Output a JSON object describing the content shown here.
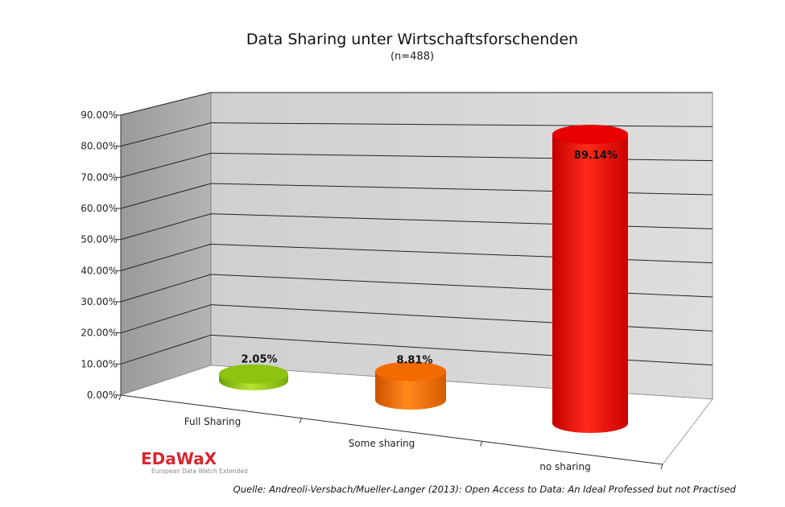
{
  "chart_data": {
    "type": "bar",
    "title": "Data Sharing unter Wirtschaftsforschenden",
    "subtitle": "(n=488)",
    "categories": [
      "Full Sharing",
      "Some sharing",
      "no sharing"
    ],
    "values": [
      2.05,
      8.81,
      89.14
    ],
    "value_labels": [
      "2.05%",
      "8.81%",
      "89.14%"
    ],
    "bar_colors": [
      "#8cc410",
      "#f26a00",
      "#e80000"
    ],
    "ylim": [
      0,
      90
    ],
    "yticks": [
      "0.00%",
      "10.00%",
      "20.00%",
      "30.00%",
      "40.00%",
      "50.00%",
      "60.00%",
      "70.00%",
      "80.00%",
      "90.00%"
    ],
    "grid": true,
    "style": "3d-cylinder"
  },
  "logo": {
    "name": "EDaWaX",
    "tagline": "European Data Watch Extended"
  },
  "source": "Quelle: Andreoli-Versbach/Mueller-Langer (2013): Open Access to Data: An Ideal Professed but not Practised"
}
